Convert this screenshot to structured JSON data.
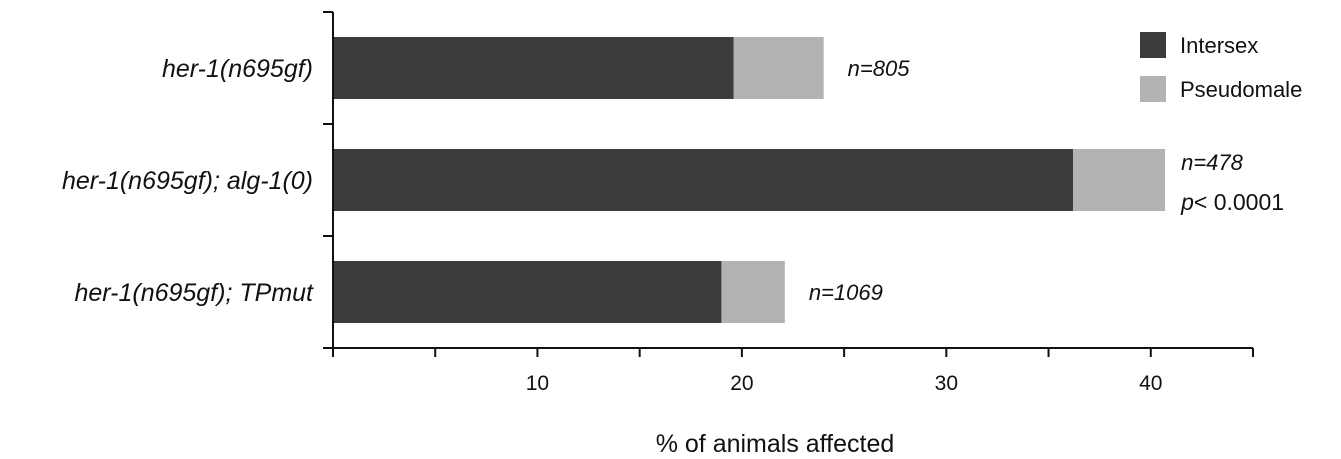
{
  "chart_data": {
    "type": "bar",
    "orientation": "horizontal",
    "stacked": true,
    "categories": [
      "her-1(n695gf)",
      "her-1(n695gf); alg-1(0)",
      "her-1(n695gf); TPmut"
    ],
    "series": [
      {
        "name": "Intersex",
        "values": [
          19.6,
          36.2,
          19.0
        ],
        "color": "#3b3b3d"
      },
      {
        "name": "Pseudomale",
        "values": [
          4.4,
          4.5,
          3.1
        ],
        "color": "#b1b3b5"
      }
    ],
    "annotations": [
      {
        "category_index": 0,
        "text": "n=805"
      },
      {
        "category_index": 1,
        "text": "n=478",
        "extra_prefix": "p",
        "extra_rest": "< 0.0001"
      },
      {
        "category_index": 2,
        "text": "n=1069"
      }
    ],
    "xlabel": "% of animals affected",
    "ylabel": "",
    "xlim": [
      0,
      45
    ],
    "x_major_ticks": [
      10,
      20,
      30,
      40
    ],
    "x_minor_ticks": [
      0,
      5,
      15,
      25,
      35,
      45
    ],
    "legend": {
      "position": "top-right",
      "entries": [
        "Intersex",
        "Pseudomale"
      ]
    },
    "grid": false
  }
}
